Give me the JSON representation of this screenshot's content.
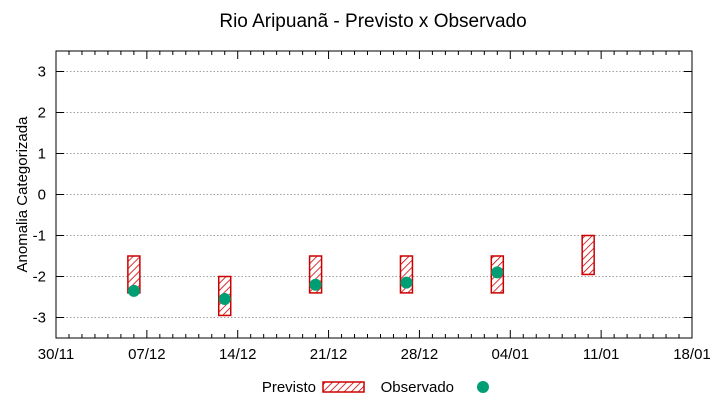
{
  "chart_data": {
    "type": "range-and-scatter",
    "title": "Rio Aripuanã - Previsto x Observado",
    "xlabel": "",
    "ylabel": "Anomalia Categorizada",
    "ylim": [
      -3.5,
      3.5
    ],
    "yticks": [
      3,
      2,
      1,
      0,
      -1,
      -2,
      -3
    ],
    "ytick_labels": [
      "3",
      "2",
      "1",
      "0",
      "-1",
      "-2",
      "-3"
    ],
    "xlim": [
      "30/11",
      "18/01"
    ],
    "xticks": [
      "30/11",
      "07/12",
      "14/12",
      "21/12",
      "28/12",
      "04/01",
      "11/01",
      "18/01"
    ],
    "grid": true,
    "legend_position": "bottom",
    "series": [
      {
        "name": "Previsto",
        "kind": "range",
        "color": "#cc0000",
        "points": [
          {
            "x": "06/12",
            "low": -2.4,
            "high": -1.5
          },
          {
            "x": "13/12",
            "low": -2.95,
            "high": -2.0
          },
          {
            "x": "20/12",
            "low": -2.4,
            "high": -1.5
          },
          {
            "x": "27/12",
            "low": -2.4,
            "high": -1.5
          },
          {
            "x": "03/01",
            "low": -2.4,
            "high": -1.5
          },
          {
            "x": "10/01",
            "low": -1.95,
            "high": -1.0
          }
        ]
      },
      {
        "name": "Observado",
        "kind": "scatter",
        "color": "#009e73",
        "points": [
          {
            "x": "06/12",
            "y": -2.35
          },
          {
            "x": "13/12",
            "y": -2.55
          },
          {
            "x": "20/12",
            "y": -2.2
          },
          {
            "x": "27/12",
            "y": -2.15
          },
          {
            "x": "03/01",
            "y": -1.9
          }
        ]
      }
    ]
  }
}
